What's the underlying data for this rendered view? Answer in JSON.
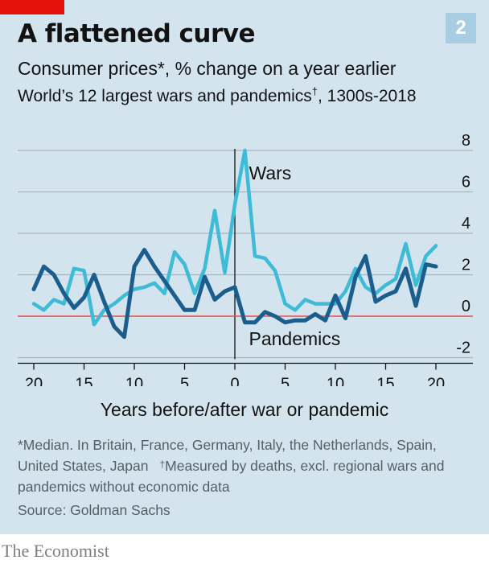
{
  "badge": "2",
  "title": "A flattened curve",
  "subtitle": "Consumer prices*, % change on a year earlier",
  "subtitle2_main": "World’s 12 largest wars and pandemics",
  "subtitle2_mark": "†",
  "subtitle2_tail": ", 1300s-2018",
  "footnote_main": "*Median. In Britain, France, Germany, Italy, the Netherlands, Spain, United States, Japan",
  "footnote_mark": "†",
  "footnote_tail": "Measured by deaths, excl. regional wars and pandemics without economic data",
  "source": "Source: Goldman Sachs",
  "brand": "The Economist",
  "colors": {
    "wars": "#3ebbd6",
    "pandemics": "#1b5d8c",
    "zero_line": "#e3504a",
    "grid": "#a9b5bd",
    "background": "#d3e4ee"
  },
  "chart_data": {
    "type": "line",
    "title": "A flattened curve",
    "subtitle": "Consumer prices*, % change on a year earlier",
    "xlabel": "Years before/after war or pandemic",
    "ylabel": "",
    "xlim": [
      -20,
      20
    ],
    "ylim": [
      -2,
      8
    ],
    "x_ticks": [
      -20,
      -15,
      -10,
      -5,
      0,
      5,
      10,
      15,
      20
    ],
    "x_tick_labels": [
      "20",
      "15",
      "10",
      "5",
      "0",
      "5",
      "10",
      "15",
      "20"
    ],
    "y_ticks": [
      8,
      6,
      4,
      2,
      0,
      -2
    ],
    "y_tick_labels": [
      "8",
      "6",
      "4",
      "2",
      "0",
      "-2"
    ],
    "x": [
      -20,
      -19,
      -18,
      -17,
      -16,
      -15,
      -14,
      -13,
      -12,
      -11,
      -10,
      -9,
      -8,
      -7,
      -6,
      -5,
      -4,
      -3,
      -2,
      -1,
      0,
      1,
      2,
      3,
      4,
      5,
      6,
      7,
      8,
      9,
      10,
      11,
      12,
      13,
      14,
      15,
      16,
      17,
      18,
      19,
      20
    ],
    "series": [
      {
        "name": "Wars",
        "values": [
          0.6,
          0.3,
          0.8,
          0.6,
          2.3,
          2.2,
          -0.4,
          0.3,
          0.6,
          1.0,
          1.3,
          1.4,
          1.6,
          1.1,
          3.1,
          2.5,
          1.1,
          2.3,
          5.1,
          2.1,
          5.4,
          8.0,
          2.9,
          2.8,
          2.2,
          0.6,
          0.3,
          0.8,
          0.6,
          0.6,
          0.6,
          1.2,
          2.3,
          1.4,
          1.1,
          1.5,
          1.8,
          3.5,
          1.5,
          2.9,
          3.4
        ]
      },
      {
        "name": "Pandemics",
        "values": [
          1.3,
          2.4,
          2.0,
          1.1,
          0.4,
          0.9,
          2.0,
          0.7,
          -0.5,
          -1.0,
          2.4,
          3.2,
          2.4,
          1.7,
          1.0,
          0.3,
          0.3,
          1.9,
          0.8,
          1.2,
          1.4,
          -0.3,
          -0.3,
          0.2,
          0.0,
          -0.3,
          -0.2,
          -0.2,
          0.1,
          -0.2,
          1.0,
          -0.1,
          1.9,
          2.9,
          0.7,
          1.0,
          1.2,
          2.3,
          0.5,
          2.5,
          2.4
        ]
      }
    ],
    "annotations": [
      "Wars",
      "Pandemics"
    ],
    "grid": true,
    "y_axis_position": "right"
  }
}
